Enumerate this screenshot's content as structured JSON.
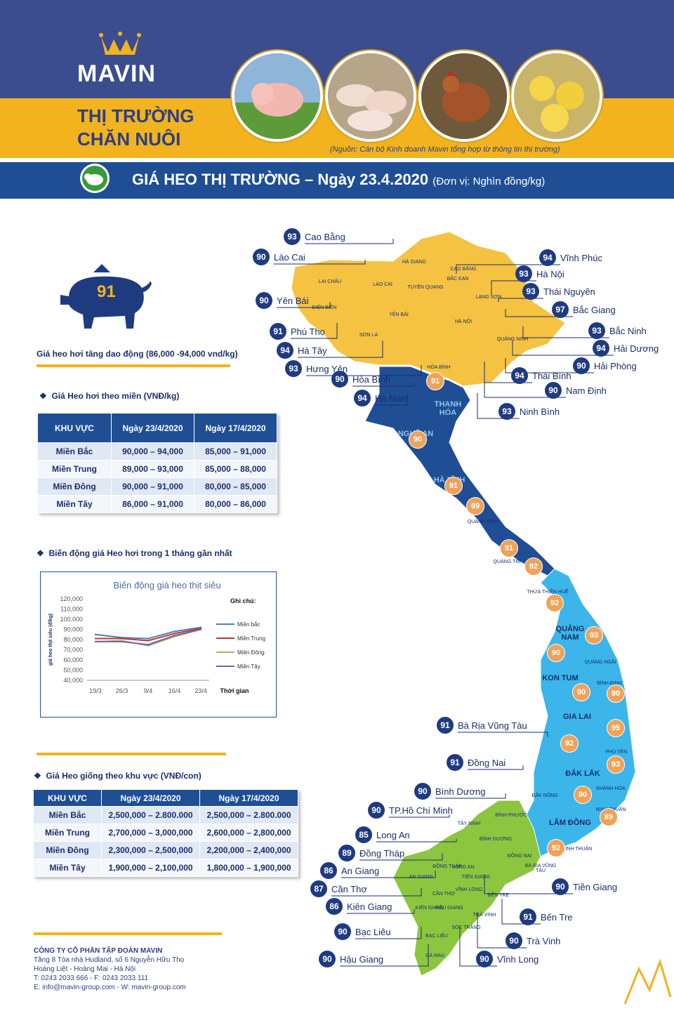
{
  "header": {
    "brand": "MAVIN",
    "title_line1": "THỊ TRƯỜNG",
    "title_line2": "CHĂN NUÔI",
    "source": "(Nguồn: Cán bộ Kinh doanh Mavin tổng hợp từ thông tin thị trường)"
  },
  "banner": {
    "title": "GIÁ HEO THỊ TRƯỜNG – Ngày 23.4.2020",
    "unit": "(Đơn vị: Nghìn đồng/kg)"
  },
  "summary": {
    "price": "91",
    "note": "Giá heo hơi tăng dao động (86,000 -94,000 vnd/kg)"
  },
  "region_table": {
    "section_title": "Giá Heo hơi theo miền (VNĐ/kg)",
    "headers": [
      "KHU VỰC",
      "Ngày 23/4/2020",
      "Ngày 17/4/2020"
    ],
    "rows": [
      [
        "Miền Bắc",
        "90,000 – 94,000",
        "85,000 – 91,000"
      ],
      [
        "Miền Trung",
        "89,000 – 93,000",
        "85,000 – 88,000"
      ],
      [
        "Miền Đông",
        "90,000 – 91,000",
        "80,000 – 85,000"
      ],
      [
        "Miền Tây",
        "86,000 – 91,000",
        "80,000 – 86,000"
      ]
    ]
  },
  "chart_section_title": "Biến động giá Heo hơi trong 1 tháng gần nhất",
  "chart_data": {
    "type": "line",
    "title": "Biến động giá heo thịt siêu",
    "ylabel": "giá heo thịt siêu (đ/kg)",
    "xlabel": "Thời gian",
    "legend_title": "Ghi chú:",
    "legend_placement": "right",
    "categories": [
      "19/3",
      "26/3",
      "9/4",
      "16/4",
      "23/4"
    ],
    "ylim": [
      40000,
      120000
    ],
    "yticks": [
      "120,000",
      "110,000",
      "100,000",
      "90,000",
      "80,000",
      "70,000",
      "60,000",
      "50,000",
      "40,000"
    ],
    "series": [
      {
        "name": "Miền bắc",
        "color": "#4a7fc1",
        "values": [
          85000,
          82000,
          81000,
          88000,
          92000
        ]
      },
      {
        "name": "Miền Trung",
        "color": "#c0392b",
        "values": [
          81000,
          81000,
          79000,
          86000,
          91000
        ]
      },
      {
        "name": "Miền Đông",
        "color": "#9bbb59",
        "values": [
          78000,
          79000,
          74000,
          83000,
          90000
        ]
      },
      {
        "name": "Miền Tây",
        "color": "#7b5ea7",
        "values": [
          78000,
          78000,
          75000,
          84000,
          90000
        ]
      }
    ]
  },
  "breed_table": {
    "section_title": "Giá Heo giống theo khu vực (VNĐ/con)",
    "headers": [
      "KHU VỰC",
      "Ngày 23/4/2020",
      "Ngày 17/4/2020"
    ],
    "rows": [
      [
        "Miền Bắc",
        "2,500,000 – 2.800.000",
        "2,500,000 – 2.800.000"
      ],
      [
        "Miền Trung",
        "2,700,000 – 3,000,000",
        "2,600,000 – 2,800,000"
      ],
      [
        "Miền Đông",
        "2,300,000 – 2,500,000",
        "2,200,000 – 2,400,000"
      ],
      [
        "Miền Tây",
        "1,900,000 – 2,100,000",
        "1,800,000 – 1,900,000"
      ]
    ]
  },
  "footer": {
    "company": "CÔNG TY CỔ PHẦN TẬP ĐOÀN MAVIN",
    "line1": "Tầng 8 Tòa nhà Hudland, số 6 Nguyễn Hữu Thọ",
    "line2": "Hoàng Liệt - Hoàng Mai - Hà Nội",
    "line3": "T: 0243 2033 666 - F: 0243 2033 111",
    "line4": "E: info@mavin-group.com - W: mavin-group.com"
  },
  "map": {
    "province_labels": [
      {
        "name": "CAO BẰNG"
      },
      {
        "name": "HÀ GIANG"
      },
      {
        "name": "LAI CHÂU"
      },
      {
        "name": "LÀO CAI"
      },
      {
        "name": "TUYÊN QUANG"
      },
      {
        "name": "BẮC KAN"
      },
      {
        "name": "LẠNG SƠN"
      },
      {
        "name": "ĐIỆN BIÊN"
      },
      {
        "name": "YÊN BÁI"
      },
      {
        "name": "SƠN LA"
      },
      {
        "name": "HÀ NỘI"
      },
      {
        "name": "QUẢNG NINH"
      },
      {
        "name": "HÒA BÌNH"
      },
      {
        "name": "THANH HÓA"
      },
      {
        "name": "NGHỆ AN"
      },
      {
        "name": "HÀ TĨNH"
      },
      {
        "name": "QUẢNG BÌNH"
      },
      {
        "name": "QUẢNG TRỊ"
      },
      {
        "name": "THỪA THIÊN HUẾ"
      },
      {
        "name": "QUẢNG NAM"
      },
      {
        "name": "QUẢNG NGÃI"
      },
      {
        "name": "KON TUM"
      },
      {
        "name": "BÌNH ĐỊNH"
      },
      {
        "name": "GIA LAI"
      },
      {
        "name": "PHÚ YÊN"
      },
      {
        "name": "ĐẮK LẮK"
      },
      {
        "name": "KHÁNH HÒA"
      },
      {
        "name": "ĐẮK NÔNG"
      },
      {
        "name": "LÂM ĐỒNG"
      },
      {
        "name": "NINH THUẬN"
      },
      {
        "name": "BÌNH THUẬN"
      },
      {
        "name": "BÌNH PHƯỚC"
      },
      {
        "name": "TÂY NINH"
      },
      {
        "name": "BÌNH DƯƠNG"
      },
      {
        "name": "ĐỒNG NAI"
      },
      {
        "name": "BÀ RỊA VŨNG TÀU"
      },
      {
        "name": "AN GIANG"
      },
      {
        "name": "ĐỒNG THÁP"
      },
      {
        "name": "LONG AN"
      },
      {
        "name": "TIỀN GIANG"
      },
      {
        "name": "CẦN THƠ"
      },
      {
        "name": "VĨNH LONG"
      },
      {
        "name": "BẾN TRE"
      },
      {
        "name": "KIÊN GIANG"
      },
      {
        "name": "HẬU GIANG"
      },
      {
        "name": "SÓC TRĂNG"
      },
      {
        "name": "TRÀ VINH"
      },
      {
        "name": "BẠC LIÊU"
      },
      {
        "name": "CÀ MAU"
      }
    ],
    "callouts": [
      {
        "value": "93",
        "name": "Cao Bằng"
      },
      {
        "value": "90",
        "name": "Lào Cai"
      },
      {
        "value": "90",
        "name": "Yên Bái"
      },
      {
        "value": "91",
        "name": "Phú Thọ"
      },
      {
        "value": "94",
        "name": "Hà Tây"
      },
      {
        "value": "93",
        "name": "Hưng Yên"
      },
      {
        "value": "90",
        "name": "Hòa Bình"
      },
      {
        "value": "94",
        "name": "Hà Nam"
      },
      {
        "value": "94",
        "name": "Vĩnh Phúc"
      },
      {
        "value": "93",
        "name": "Hà Nội"
      },
      {
        "value": "93",
        "name": "Thái Nguyên"
      },
      {
        "value": "97",
        "name": "Bắc Giang"
      },
      {
        "value": "93",
        "name": "Bắc Ninh"
      },
      {
        "value": "94",
        "name": "Hải Dương"
      },
      {
        "value": "90",
        "name": "Hải Phòng"
      },
      {
        "value": "94",
        "name": "Thái Bình"
      },
      {
        "value": "90",
        "name": "Nam Định"
      },
      {
        "value": "93",
        "name": "Ninh Bình"
      },
      {
        "value": "91",
        "name": "Bà Rịa Vũng Tàu"
      },
      {
        "value": "91",
        "name": "Đồng Nai"
      },
      {
        "value": "90",
        "name": "Bình Dương"
      },
      {
        "value": "90",
        "name": "TP.Hồ Chí Minh"
      },
      {
        "value": "85",
        "name": "Long An"
      },
      {
        "value": "89",
        "name": "Đồng Tháp"
      },
      {
        "value": "86",
        "name": "An Giang"
      },
      {
        "value": "87",
        "name": "Cần Thơ"
      },
      {
        "value": "86",
        "name": "Kiên Giang"
      },
      {
        "value": "90",
        "name": "Bạc Liêu"
      },
      {
        "value": "90",
        "name": "Hậu Giang"
      },
      {
        "value": "90",
        "name": "Tiền Giang"
      },
      {
        "value": "91",
        "name": "Bến Tre"
      },
      {
        "value": "90",
        "name": "Trà Vinh"
      },
      {
        "value": "90",
        "name": "Vĩnh Long"
      }
    ],
    "region_badges": [
      {
        "value": "91"
      },
      {
        "value": "90"
      },
      {
        "value": "91"
      },
      {
        "value": "89"
      },
      {
        "value": "91"
      },
      {
        "value": "92"
      },
      {
        "value": "92"
      },
      {
        "value": "93"
      },
      {
        "value": "90"
      },
      {
        "value": "90"
      },
      {
        "value": "90"
      },
      {
        "value": "95"
      },
      {
        "value": "92"
      },
      {
        "value": "93"
      },
      {
        "value": "90"
      },
      {
        "value": "89"
      },
      {
        "value": "92"
      }
    ]
  }
}
